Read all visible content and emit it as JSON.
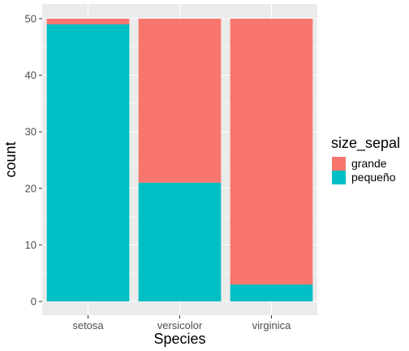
{
  "chart_data": {
    "type": "bar",
    "stacked": true,
    "categories": [
      "setosa",
      "versicolor",
      "virginica"
    ],
    "series": [
      {
        "name": "pequeño",
        "values": [
          49,
          21,
          3
        ],
        "color": "#00bfc4"
      },
      {
        "name": "grande",
        "values": [
          1,
          29,
          47
        ],
        "color": "#f8766d"
      }
    ],
    "xlabel": "Species",
    "ylabel": "count",
    "ylim": [
      0,
      50
    ],
    "yticks": [
      0,
      10,
      20,
      30,
      40,
      50
    ],
    "legend": {
      "title": "size_sepal",
      "placement": "right",
      "entries": [
        {
          "label": "grande",
          "color": "#f8766d"
        },
        {
          "label": "pequeño",
          "color": "#00bfc4"
        }
      ]
    },
    "panel_background": "#ebebeb",
    "grid_color": "#ffffff"
  }
}
